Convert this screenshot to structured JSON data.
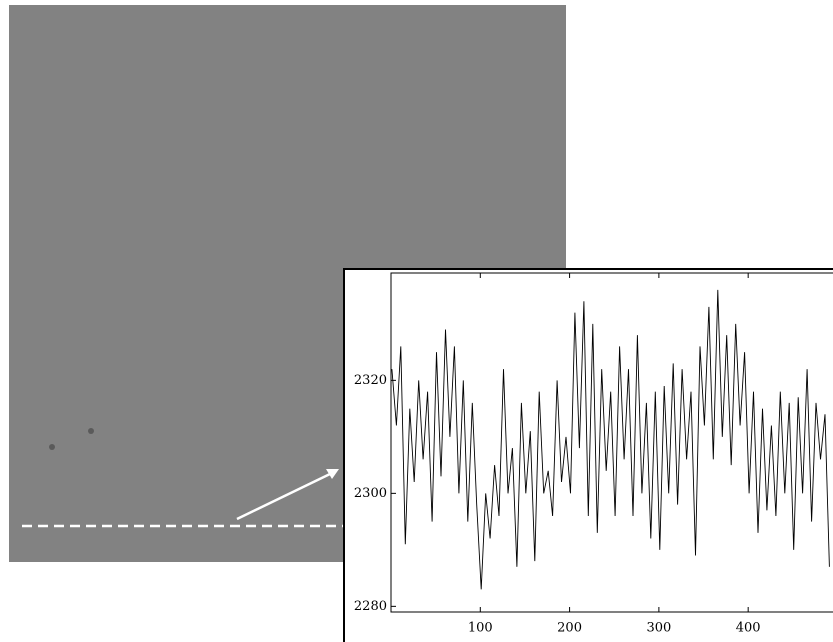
{
  "chart_data": {
    "type": "line",
    "x": [
      1,
      6,
      11,
      16,
      21,
      26,
      31,
      36,
      41,
      46,
      51,
      56,
      61,
      66,
      71,
      76,
      81,
      86,
      91,
      96,
      101,
      106,
      111,
      116,
      121,
      126,
      131,
      136,
      141,
      146,
      151,
      156,
      161,
      166,
      171,
      176,
      181,
      186,
      191,
      196,
      201,
      206,
      211,
      216,
      221,
      226,
      231,
      236,
      241,
      246,
      251,
      256,
      261,
      266,
      271,
      276,
      281,
      286,
      291,
      296,
      301,
      306,
      311,
      316,
      321,
      326,
      331,
      336,
      341,
      346,
      351,
      356,
      361,
      366,
      371,
      376,
      381,
      386,
      391,
      396,
      401,
      406,
      411,
      416,
      421,
      426,
      431,
      436,
      441,
      446,
      451,
      456,
      461,
      466,
      471,
      476,
      481,
      486,
      491
    ],
    "series": [
      {
        "color": "#000000",
        "values": [
          2322,
          2312,
          2326,
          2291,
          2315,
          2302,
          2320,
          2306,
          2318,
          2295,
          2325,
          2303,
          2329,
          2310,
          2326,
          2300,
          2320,
          2295,
          2316,
          2298,
          2283,
          2300,
          2292,
          2305,
          2296,
          2322,
          2300,
          2308,
          2287,
          2316,
          2300,
          2311,
          2288,
          2318,
          2300,
          2304,
          2296,
          2320,
          2302,
          2310,
          2300,
          2332,
          2308,
          2334,
          2296,
          2330,
          2293,
          2322,
          2304,
          2318,
          2296,
          2326,
          2306,
          2322,
          2296,
          2328,
          2300,
          2316,
          2292,
          2318,
          2290,
          2319,
          2300,
          2323,
          2298,
          2322,
          2306,
          2318,
          2289,
          2326,
          2312,
          2333,
          2306,
          2336,
          2310,
          2328,
          2305,
          2330,
          2312,
          2325,
          2300,
          2318,
          2293,
          2315,
          2297,
          2312,
          2296,
          2318,
          2300,
          2316,
          2290,
          2317,
          2300,
          2322,
          2295,
          2316,
          2306,
          2314,
          2287
        ]
      }
    ],
    "xlim": [
      0,
      495
    ],
    "ylim": [
      2279,
      2339
    ],
    "xticks": [
      100,
      200,
      300,
      400
    ],
    "yticks": [
      2280,
      2300,
      2320
    ]
  }
}
